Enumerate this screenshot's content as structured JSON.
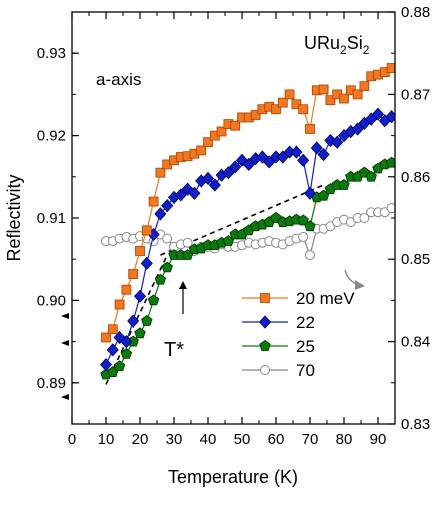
{
  "chart_data": {
    "type": "scatter",
    "xlabel": "Temperature (K)",
    "ylabel": "Reflectivity",
    "xlim": [
      0,
      95
    ],
    "ylim_left": [
      0.885,
      0.935
    ],
    "ylim_right": [
      0.83,
      0.88
    ],
    "x_ticks": [
      "0",
      "10",
      "20",
      "30",
      "40",
      "50",
      "60",
      "70",
      "80",
      "90"
    ],
    "y_ticks_left": [
      "0.89",
      "0.90",
      "0.91",
      "0.92",
      "0.93"
    ],
    "y_ticks_right": [
      "0.83",
      "0.84",
      "0.85",
      "0.86",
      "0.87",
      "0.88"
    ],
    "annotations": {
      "compound_main": "URu",
      "compound_sub1": "2",
      "compound_mid": "Si",
      "compound_sub2": "2",
      "axis_label": "a-axis",
      "transition": "T*"
    },
    "legend_position": "lower-right",
    "series": [
      {
        "name": "20 meV",
        "axis": "left",
        "color": "#f07820",
        "marker": "square",
        "x": [
          10,
          12,
          14,
          16,
          18,
          20,
          22,
          24,
          26,
          28,
          30,
          32,
          34,
          36,
          38,
          40,
          42,
          44,
          46,
          48,
          50,
          52,
          54,
          56,
          58,
          60,
          62,
          64,
          66,
          68,
          70,
          72,
          74,
          76,
          78,
          80,
          82,
          84,
          86,
          88,
          90,
          92,
          94
        ],
        "y": [
          0.8955,
          0.8965,
          0.8995,
          0.9013,
          0.9032,
          0.906,
          0.9085,
          0.912,
          0.9155,
          0.9165,
          0.917,
          0.9174,
          0.9175,
          0.9178,
          0.9182,
          0.9192,
          0.92,
          0.9205,
          0.9214,
          0.9212,
          0.9222,
          0.9222,
          0.9225,
          0.9232,
          0.9235,
          0.9232,
          0.924,
          0.925,
          0.9238,
          0.9232,
          0.9208,
          0.9255,
          0.9256,
          0.9243,
          0.925,
          0.9245,
          0.9255,
          0.925,
          0.926,
          0.9272,
          0.9274,
          0.9277,
          0.9282
        ]
      },
      {
        "name": "22",
        "axis": "left",
        "color": "#1020c8",
        "marker": "diamond",
        "x": [
          10,
          12,
          14,
          16,
          18,
          20,
          22,
          24,
          26,
          28,
          30,
          32,
          34,
          36,
          38,
          40,
          42,
          44,
          46,
          48,
          50,
          52,
          54,
          56,
          58,
          60,
          62,
          64,
          66,
          68,
          70,
          72,
          74,
          76,
          78,
          80,
          82,
          84,
          86,
          88,
          90,
          92,
          94
        ],
        "y": [
          0.8922,
          0.894,
          0.8955,
          0.895,
          0.8975,
          0.9005,
          0.9045,
          0.908,
          0.9105,
          0.9115,
          0.9125,
          0.9128,
          0.9135,
          0.913,
          0.9145,
          0.9148,
          0.914,
          0.9152,
          0.9155,
          0.9162,
          0.917,
          0.9165,
          0.9172,
          0.9174,
          0.9168,
          0.9174,
          0.9174,
          0.918,
          0.918,
          0.917,
          0.913,
          0.9185,
          0.9177,
          0.9194,
          0.9192,
          0.92,
          0.9205,
          0.9208,
          0.9215,
          0.922,
          0.9226,
          0.9218,
          0.9223
        ]
      },
      {
        "name": "25",
        "axis": "right",
        "color": "#0a7a0a",
        "marker": "pentagon",
        "x": [
          10,
          12,
          14,
          16,
          18,
          20,
          22,
          24,
          26,
          28,
          30,
          32,
          34,
          36,
          38,
          40,
          42,
          44,
          46,
          48,
          50,
          52,
          54,
          56,
          58,
          60,
          62,
          64,
          66,
          68,
          70,
          72,
          74,
          76,
          78,
          80,
          82,
          84,
          86,
          88,
          90,
          92,
          94
        ],
        "y": [
          0.836,
          0.8363,
          0.837,
          0.8385,
          0.84,
          0.841,
          0.8425,
          0.845,
          0.8475,
          0.849,
          0.8505,
          0.8505,
          0.8505,
          0.8512,
          0.8513,
          0.8517,
          0.8517,
          0.852,
          0.8522,
          0.853,
          0.853,
          0.8535,
          0.854,
          0.8542,
          0.8545,
          0.855,
          0.8545,
          0.8546,
          0.8548,
          0.8547,
          0.854,
          0.8575,
          0.8577,
          0.8585,
          0.859,
          0.859,
          0.86,
          0.86,
          0.8605,
          0.86,
          0.861,
          0.8615,
          0.8617
        ]
      },
      {
        "name": "70",
        "axis": "right",
        "color": "#888888",
        "marker": "circle",
        "x": [
          10,
          12,
          14,
          16,
          18,
          20,
          22,
          24,
          26,
          28,
          30,
          32,
          34,
          36,
          38,
          40,
          42,
          44,
          46,
          48,
          50,
          52,
          54,
          56,
          58,
          60,
          62,
          64,
          66,
          68,
          70,
          72,
          74,
          76,
          78,
          80,
          82,
          84,
          86,
          88,
          90,
          92,
          94
        ],
        "y": [
          0.8522,
          0.8522,
          0.8525,
          0.8527,
          0.8525,
          0.8528,
          0.8525,
          0.8522,
          0.853,
          0.8525,
          0.8515,
          0.8518,
          0.852,
          0.851,
          0.8515,
          0.8515,
          0.8513,
          0.8518,
          0.8515,
          0.8515,
          0.8517,
          0.852,
          0.8518,
          0.852,
          0.8522,
          0.852,
          0.8518,
          0.8522,
          0.8525,
          0.8527,
          0.8505,
          0.8537,
          0.8537,
          0.854,
          0.8545,
          0.8548,
          0.8545,
          0.855,
          0.855,
          0.8557,
          0.8557,
          0.8557,
          0.8562
        ]
      }
    ]
  }
}
